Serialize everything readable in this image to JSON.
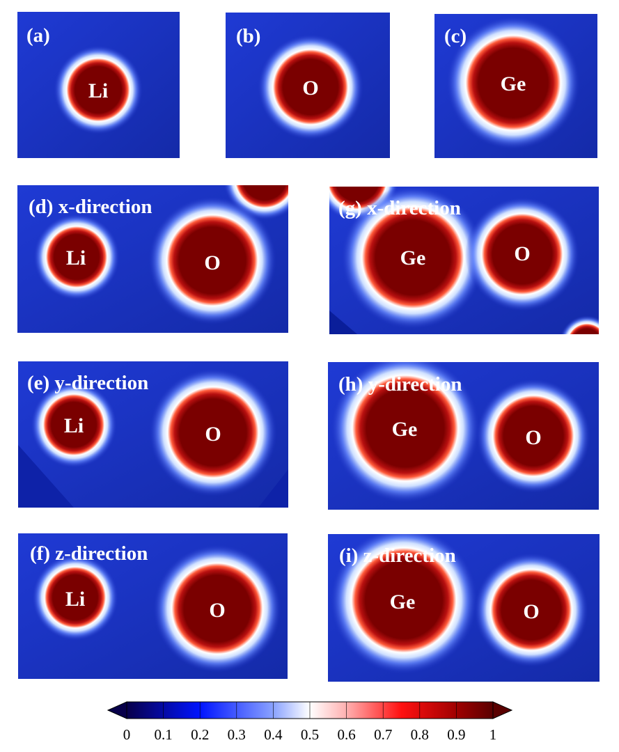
{
  "panels": [
    {
      "id": "a",
      "label": "(a)",
      "atoms": [
        {
          "symbol": "Li"
        }
      ]
    },
    {
      "id": "b",
      "label": "(b)",
      "atoms": [
        {
          "symbol": "O"
        }
      ]
    },
    {
      "id": "c",
      "label": "(c)",
      "atoms": [
        {
          "symbol": "Ge"
        }
      ]
    },
    {
      "id": "d",
      "label": "(d) x-direction",
      "atoms": [
        {
          "symbol": "Li"
        },
        {
          "symbol": "O"
        }
      ]
    },
    {
      "id": "g",
      "label": "(g) x-direction",
      "atoms": [
        {
          "symbol": "Ge"
        },
        {
          "symbol": "O"
        }
      ]
    },
    {
      "id": "e",
      "label": "(e) y-direction",
      "atoms": [
        {
          "symbol": "Li"
        },
        {
          "symbol": "O"
        }
      ]
    },
    {
      "id": "h",
      "label": "(h) y-direction",
      "atoms": [
        {
          "symbol": "Ge"
        },
        {
          "symbol": "O"
        }
      ]
    },
    {
      "id": "f",
      "label": "(f) z-direction",
      "atoms": [
        {
          "symbol": "Li"
        },
        {
          "symbol": "O"
        }
      ]
    },
    {
      "id": "i",
      "label": "(i) z-direction",
      "atoms": [
        {
          "symbol": "Ge"
        },
        {
          "symbol": "O"
        }
      ]
    }
  ],
  "colorbar": {
    "ticks": [
      "0",
      "0.1",
      "0.2",
      "0.3",
      "0.4",
      "0.5",
      "0.6",
      "0.7",
      "0.8",
      "0.9",
      "1"
    ],
    "colors": [
      "#08004a",
      "#0010c8",
      "#1e3cff",
      "#6f8cff",
      "#d6deff",
      "#ffffff",
      "#ffd0d0",
      "#ff7070",
      "#ff1010",
      "#b00000",
      "#6a0000"
    ]
  }
}
